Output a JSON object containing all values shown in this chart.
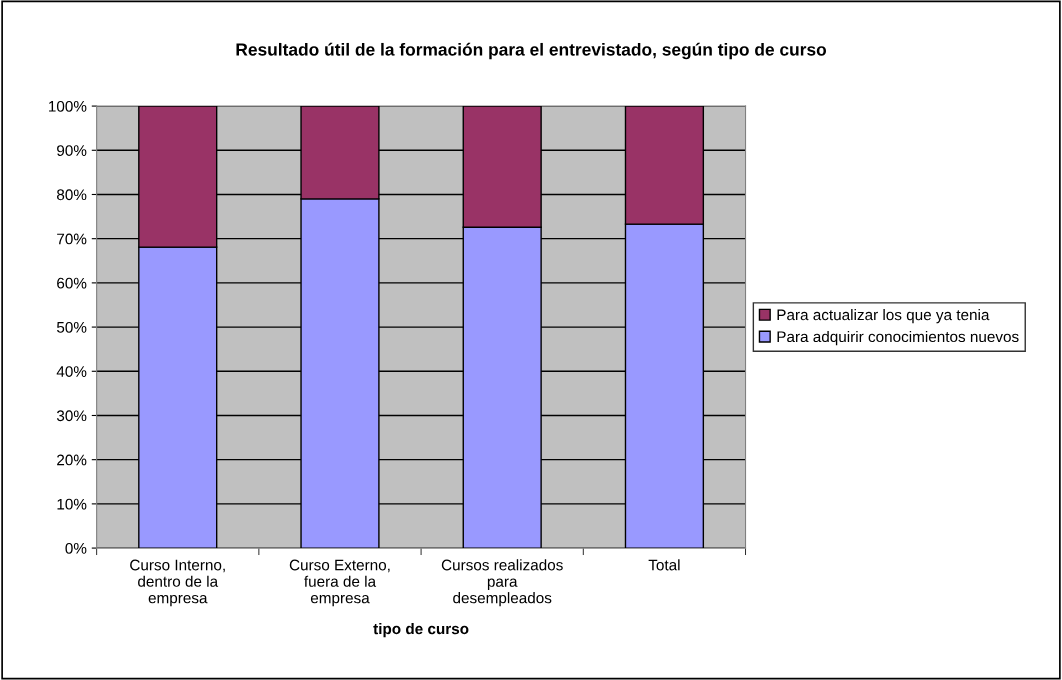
{
  "chart_data": {
    "type": "bar",
    "stacked": true,
    "title": "Resultado útil de la formación para el entrevistado, según tipo de curso",
    "xlabel": "tipo de curso",
    "categories": [
      "Curso Interno,\ndentro de la\nempresa",
      "Curso Externo,\nfuera de la\nempresa",
      "Cursos realizados\npara\ndesempleados",
      "Total"
    ],
    "series": [
      {
        "name": "Para adquirir conocimientos nuevos",
        "color": "#9999ff",
        "values": [
          68.1,
          79.0,
          72.6,
          73.3
        ]
      },
      {
        "name": "Para actualizar los que ya tenia",
        "color": "#993366",
        "values": [
          31.9,
          21.0,
          27.4,
          26.7
        ]
      }
    ],
    "ylim": [
      0,
      100
    ],
    "yticks": [
      {
        "value": 0,
        "label": "0%"
      },
      {
        "value": 10,
        "label": "10%"
      },
      {
        "value": 20,
        "label": "20%"
      },
      {
        "value": 30,
        "label": "30%"
      },
      {
        "value": 40,
        "label": "40%"
      },
      {
        "value": 50,
        "label": "50%"
      },
      {
        "value": 60,
        "label": "60%"
      },
      {
        "value": 70,
        "label": "70%"
      },
      {
        "value": 80,
        "label": "80%"
      },
      {
        "value": 90,
        "label": "90%"
      },
      {
        "value": 100,
        "label": "100%"
      }
    ],
    "grid": "y",
    "legend": "right"
  }
}
